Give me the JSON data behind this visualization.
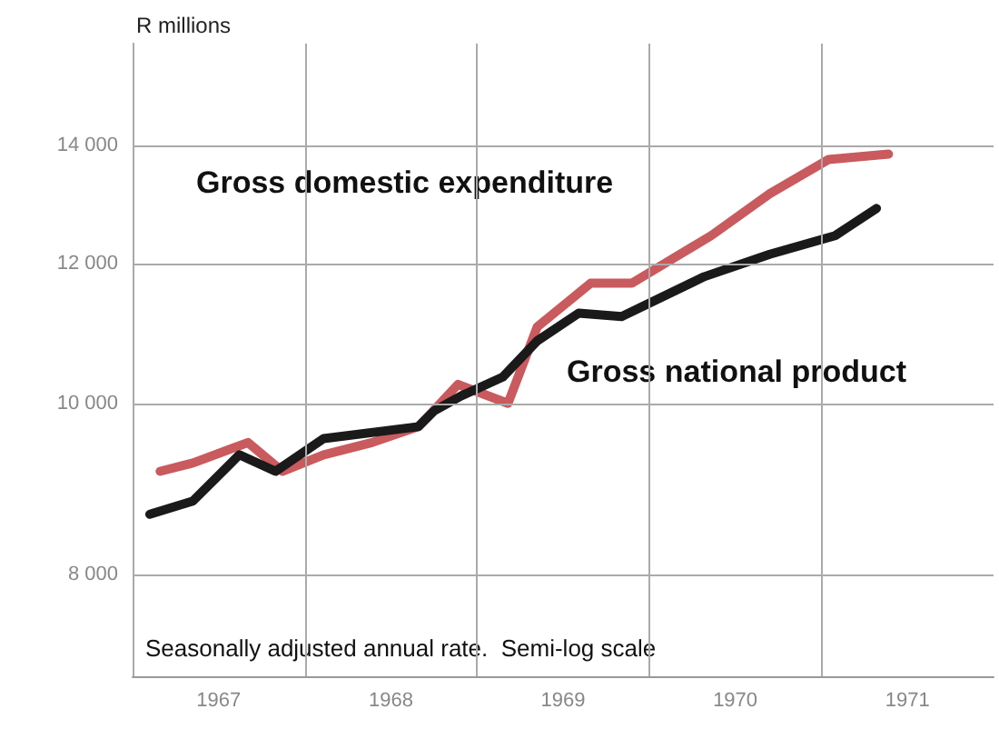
{
  "chart_data": {
    "type": "line",
    "ylabel": "R millions",
    "log": "y",
    "grid": true,
    "legend": false,
    "marker": "none",
    "line_style": "solid",
    "xlim": [
      1967,
      1972
    ],
    "xticks": [
      {
        "value": 1967,
        "label": null
      },
      {
        "value": 1967.5,
        "label": "1967"
      },
      {
        "value": 1968,
        "label": null
      },
      {
        "value": 1968.5,
        "label": "1968"
      },
      {
        "value": 1969,
        "label": null
      },
      {
        "value": 1969.5,
        "label": "1969"
      },
      {
        "value": 1970,
        "label": null
      },
      {
        "value": 1970.5,
        "label": "1970"
      },
      {
        "value": 1971,
        "label": null
      },
      {
        "value": 1971.5,
        "label": "1971"
      }
    ],
    "ylim": [
      7000,
      16000
    ],
    "yticks": [
      {
        "value": 8000,
        "label": "8 000"
      },
      {
        "value": 10000,
        "label": "10 000"
      },
      {
        "value": 12000,
        "label": "12 000"
      },
      {
        "value": 14000,
        "label": "14 000"
      }
    ],
    "annotations": [
      "Seasonally adjusted annual rate.  Semi-log scale"
    ],
    "series": [
      {
        "name": "Gross domestic expenditure",
        "color": "#c95a5e",
        "x": [
          1967.16,
          1967.35,
          1967.67,
          1967.87,
          1968.11,
          1968.39,
          1968.66,
          1968.89,
          1969.18,
          1969.35,
          1969.66,
          1969.9,
          1970.36,
          1970.7,
          1971.04,
          1971.39
        ],
        "values": [
          9150,
          9250,
          9500,
          9150,
          9350,
          9500,
          9700,
          10250,
          10000,
          11050,
          11700,
          11700,
          12450,
          13150,
          13750,
          13850
        ]
      },
      {
        "name": "Gross national product",
        "color": "#1a1a1a",
        "x": [
          1967.1,
          1967.35,
          1967.62,
          1967.83,
          1968.11,
          1968.66,
          1968.75,
          1968.91,
          1969.15,
          1969.35,
          1969.59,
          1969.84,
          1970.32,
          1970.7,
          1971.08,
          1971.32
        ],
        "values": [
          8650,
          8800,
          9350,
          9150,
          9550,
          9700,
          9900,
          10100,
          10350,
          10850,
          11250,
          11200,
          11800,
          12150,
          12450,
          12900
        ]
      }
    ]
  }
}
